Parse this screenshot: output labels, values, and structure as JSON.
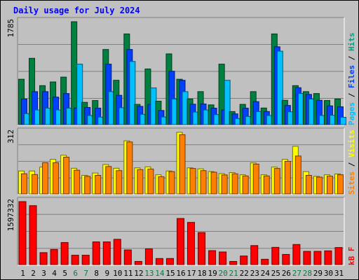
{
  "title": "Daily usage for July 2024",
  "chart_data": [
    {
      "type": "bar",
      "panel": "hits-files-pages",
      "categories": [
        "1",
        "2",
        "3",
        "4",
        "5",
        "6",
        "7",
        "8",
        "9",
        "10",
        "11",
        "12",
        "13",
        "14",
        "15",
        "16",
        "17",
        "18",
        "19",
        "20",
        "21",
        "22",
        "23",
        "24",
        "25",
        "26",
        "27",
        "28",
        "29",
        "30",
        "31"
      ],
      "weekend_days": [
        "6",
        "7",
        "13",
        "14",
        "20",
        "21",
        "27",
        "28"
      ],
      "ymax_label": "1785",
      "ylim": [
        0,
        1785
      ],
      "right_label": {
        "parts": [
          "Pages",
          "Files",
          "Hits"
        ],
        "separator": " / "
      },
      "series": [
        {
          "name": "Hits",
          "color": "#008040",
          "values": [
            787,
            1150,
            676,
            740,
            824,
            1785,
            386,
            418,
            1303,
            769,
            1573,
            351,
            965,
            406,
            1227,
            787,
            444,
            572,
            342,
            1049,
            226,
            351,
            572,
            288,
            1573,
            422,
            676,
            572,
            539,
            418,
            444
          ]
        },
        {
          "name": "Files",
          "color": "#0040ff",
          "values": [
            444,
            572,
            572,
            477,
            539,
            287,
            298,
            286,
            1049,
            508,
            1303,
            316,
            351,
            245,
            926,
            769,
            354,
            358,
            286,
            254,
            186,
            286,
            398,
            227,
            1350,
            332,
            640,
            524,
            422,
            325,
            309
          ]
        },
        {
          "name": "Pages",
          "color": "#00c0ff",
          "values": [
            191,
            254,
            286,
            254,
            286,
            1049,
            158,
            130,
            572,
            293,
            1096,
            179,
            636,
            133,
            444,
            572,
            218,
            254,
            174,
            769,
            106,
            141,
            227,
            158,
            1274,
            222,
            540,
            444,
            158,
            163,
            127
          ]
        }
      ]
    },
    {
      "type": "bar",
      "panel": "sites-visits",
      "categories": [
        "1",
        "2",
        "3",
        "4",
        "5",
        "6",
        "7",
        "8",
        "9",
        "10",
        "11",
        "12",
        "13",
        "14",
        "15",
        "16",
        "17",
        "18",
        "19",
        "20",
        "21",
        "22",
        "23",
        "24",
        "25",
        "26",
        "27",
        "28",
        "29",
        "30",
        "31"
      ],
      "ymax_label": "312",
      "ylim": [
        0,
        312
      ],
      "right_label": {
        "parts": [
          "Sites",
          "Visits"
        ],
        "separator": " / "
      },
      "series": [
        {
          "name": "Visits",
          "color": "#ffff00",
          "values": [
            116,
            116,
            136,
            175,
            196,
            130,
            94,
            106,
            149,
            130,
            269,
            132,
            137,
            97,
            116,
            312,
            132,
            127,
            113,
            103,
            108,
            97,
            157,
            97,
            136,
            175,
            241,
            113,
            89,
            97,
            101
          ]
        },
        {
          "name": "Sites",
          "color": "#ff8000",
          "values": [
            102,
            98,
            158,
            158,
            186,
            120,
            89,
            94,
            139,
            118,
            263,
            123,
            126,
            87,
            113,
            300,
            129,
            118,
            110,
            96,
            102,
            91,
            151,
            91,
            129,
            165,
            192,
            94,
            85,
            90,
            97
          ]
        }
      ]
    },
    {
      "type": "bar",
      "panel": "kbytes",
      "categories": [
        "1",
        "2",
        "3",
        "4",
        "5",
        "6",
        "7",
        "8",
        "9",
        "10",
        "11",
        "12",
        "13",
        "14",
        "15",
        "16",
        "17",
        "18",
        "19",
        "20",
        "21",
        "22",
        "23",
        "24",
        "25",
        "26",
        "27",
        "28",
        "29",
        "30",
        "31"
      ],
      "ymax_label": "1597332",
      "ylim": [
        0,
        1597332
      ],
      "right_label": {
        "parts": [
          "kB F"
        ],
        "separator": ""
      },
      "series": [
        {
          "name": "kB F",
          "color": "#ff0000",
          "values": [
            1597332,
            1494662,
            303662,
            384321,
            560132,
            238632,
            238632,
            576432,
            576432,
            641621,
            372321,
            80332,
            397332,
            154662,
            154662,
            1169332,
            1070332,
            812632,
            354662,
            320332,
            80332,
            218332,
            482632,
            135662,
            437332,
            258332,
            510332,
            335662,
            335662,
            348632,
            433332
          ]
        }
      ]
    }
  ]
}
